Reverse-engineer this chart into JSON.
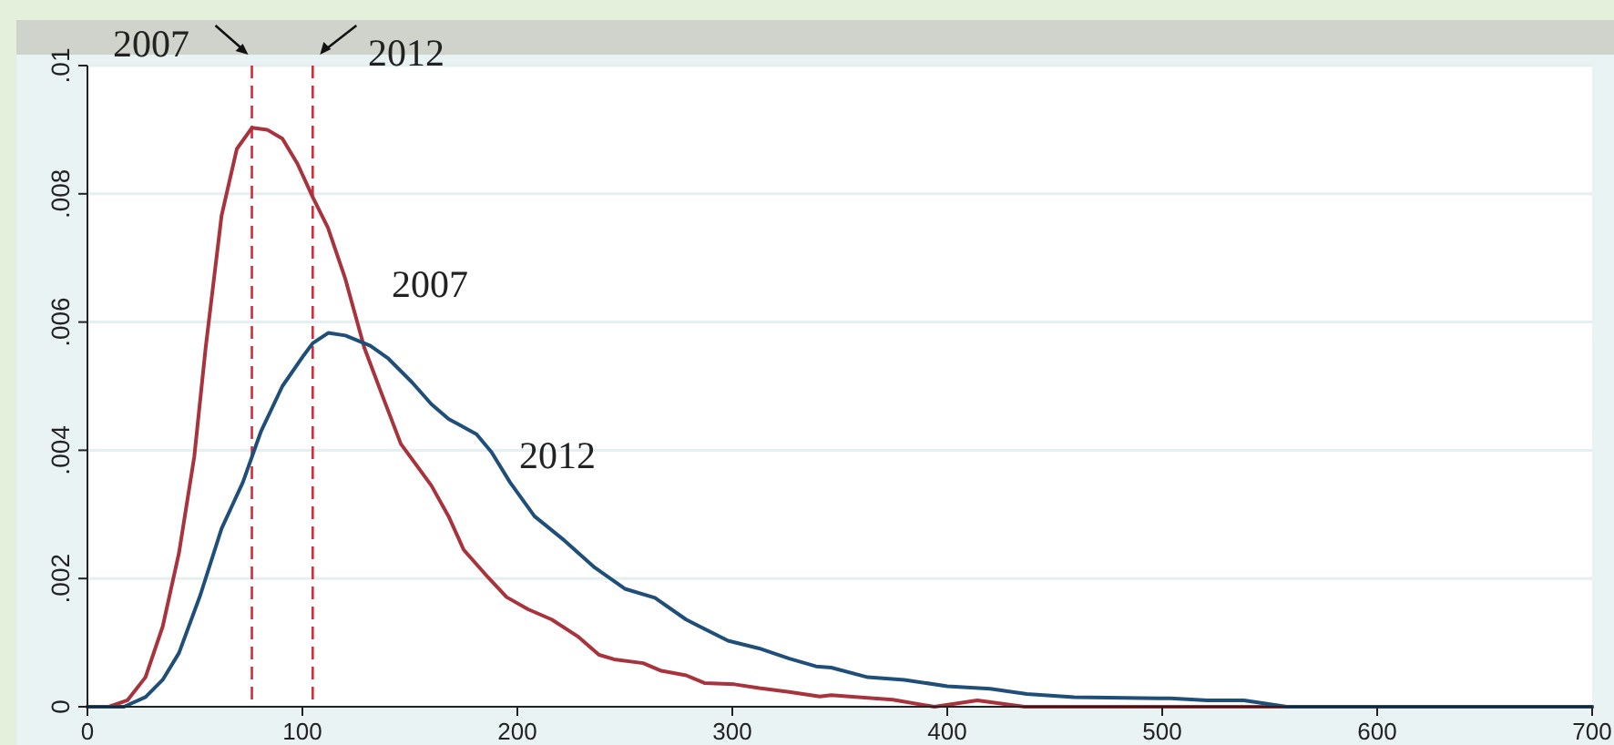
{
  "chart_data": {
    "type": "line",
    "xlim": [
      0,
      700
    ],
    "xticks": [
      0,
      100,
      200,
      300,
      400,
      500,
      600,
      700
    ],
    "ylim": [
      0,
      0.01
    ],
    "yticks": [
      {
        "value": 0,
        "label": "0"
      },
      {
        "value": 0.002,
        "label": ".002"
      },
      {
        "value": 0.004,
        "label": ".004"
      },
      {
        "value": 0.006,
        "label": ".006"
      },
      {
        "value": 0.008,
        "label": ".008"
      },
      {
        "value": 0.01,
        "label": ".01"
      }
    ],
    "grid": "y",
    "line_style": "solid",
    "marker": "none",
    "series": [
      {
        "color": "#a8333d",
        "x": [
          0,
          10,
          18.6,
          27,
          35,
          42.6,
          49.7,
          55,
          62.4,
          69.5,
          76.5,
          83.6,
          90.7,
          97.7,
          104.8,
          111.9,
          120,
          128.8,
          137,
          145.8,
          160,
          168,
          175,
          185,
          195,
          205,
          216,
          228,
          238,
          245,
          258.5,
          267,
          278.5,
          287,
          301,
          312.5,
          326.5,
          340.7,
          346,
          374.6,
          394,
          414,
          436,
          465,
          499,
          600,
          700
        ],
        "values": [
          0,
          0,
          0.0001,
          0.00046,
          0.00125,
          0.0024,
          0.0039,
          0.0056,
          0.00766,
          0.0087,
          0.00903,
          0.009,
          0.00886,
          0.00847,
          0.00795,
          0.00747,
          0.00667,
          0.0056,
          0.00487,
          0.0041,
          0.00345,
          0.00297,
          0.00245,
          0.00207,
          0.00171,
          0.00152,
          0.00136,
          0.0011,
          0.00081,
          0.00074,
          0.00068,
          0.00056,
          0.00049,
          0.00037,
          0.00035,
          0.00029,
          0.00023,
          0.00016,
          0.00018,
          0.00011,
          0,
          0.0001,
          0,
          0,
          0,
          0,
          0
        ]
      },
      {
        "color": "#1f4e79",
        "x": [
          0,
          10,
          17,
          27,
          35,
          42.6,
          52.5,
          62.4,
          72.3,
          80.8,
          90.7,
          100.6,
          104.8,
          112,
          120,
          131.6,
          140,
          151,
          160,
          168,
          181,
          188,
          196.6,
          208,
          222,
          236,
          250,
          264,
          278.5,
          298,
          312.5,
          326.5,
          339,
          346,
          363,
          380,
          400,
          420,
          437,
          459,
          504,
          521,
          538,
          558,
          606,
          635,
          700
        ],
        "values": [
          0,
          0,
          0,
          0.00015,
          0.00042,
          0.00084,
          0.00174,
          0.00278,
          0.0035,
          0.0043,
          0.005,
          0.00548,
          0.00567,
          0.00583,
          0.00579,
          0.00563,
          0.00543,
          0.00506,
          0.00472,
          0.00449,
          0.00425,
          0.00397,
          0.0035,
          0.00297,
          0.00259,
          0.00217,
          0.00184,
          0.0017,
          0.00136,
          0.00103,
          0.00091,
          0.00075,
          0.00063,
          0.00061,
          0.00046,
          0.00042,
          0.00032,
          0.00028,
          0.0002,
          0.00015,
          0.00013,
          0.0001,
          0.0001,
          0,
          0,
          0,
          0
        ]
      }
    ],
    "ref_lines": [
      {
        "axis": "x",
        "value": 76.5,
        "color": "#d62a3a",
        "line_style": "dashed"
      },
      {
        "axis": "x",
        "value": 104.8,
        "color": "#d62a3a",
        "line_style": "dashed"
      }
    ],
    "annotations": [
      "2007",
      "2012",
      "2007",
      "2012"
    ]
  }
}
